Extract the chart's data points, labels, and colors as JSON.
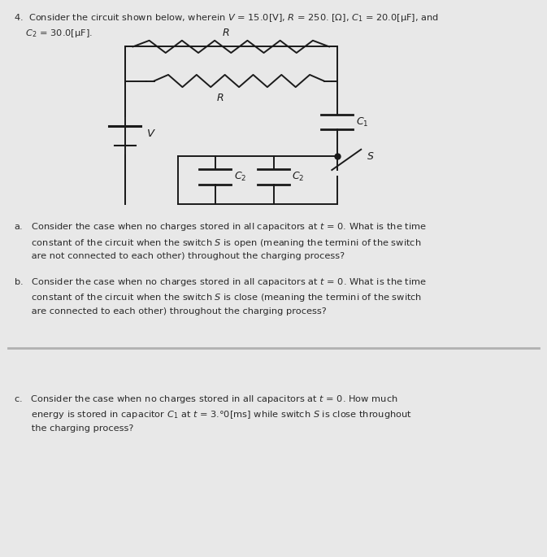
{
  "bg_color": "#e8e8e8",
  "upper_bg": "#ffffff",
  "lower_bg": "#ffffff",
  "line_color": "#1a1a1a",
  "text_color": "#2a2a2a",
  "title_line1": "4.  Consider the circuit shown below, wherein $V$ = 15.0[V], $R$ = 250. [Ω], $C_1$ = 20.0[μF], and",
  "title_line2": "    $C_2$ = 30.0[μF].",
  "qa": "a.   Consider the case when no charges stored in all capacitors at $t$ = 0. What is the time\n      constant of the circuit when the switch $S$ is open (meaning the termini of the switch\n      are not connected to each other) throughout the charging process?",
  "qb": "b.   Consider the case when no charges stored in all capacitors at $t$ = 0. What is the time\n      constant of the circuit when the switch $S$ is close (meaning the termini of the switch\n      are connected to each other) throughout the charging process?",
  "qc": "c.   Consider the case when no charges stored in all capacitors at $t$ = 0. How much\n      energy is stored in capacitor $C_1$ at $t$ = 3.°0[ms] while switch $S$ is close throughout\n      the charging process?"
}
